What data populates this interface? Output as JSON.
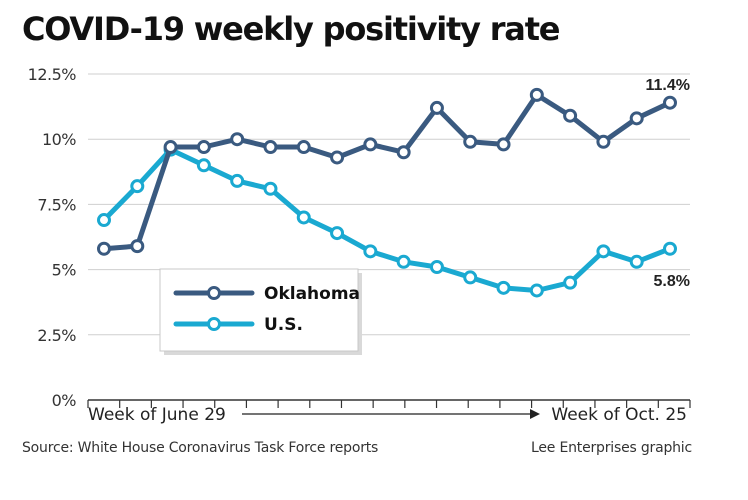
{
  "header": {
    "title": "COVID-19 weekly positivity rate"
  },
  "footer": {
    "source": "Source: White House Coronavirus Task Force reports",
    "credit": "Lee Enterprises graphic"
  },
  "colors": {
    "oklahoma": "#3a5a80",
    "us": "#1aa9d1",
    "grid": "#cfcfcf",
    "axis": "#333333"
  },
  "chart_data": {
    "type": "line",
    "title": "COVID-19 weekly positivity rate",
    "xlabel": "",
    "ylabel": "",
    "ylim": [
      0,
      12.5
    ],
    "y_ticks": [
      0,
      2.5,
      5,
      7.5,
      10,
      12.5
    ],
    "y_tick_labels": [
      "0%",
      "2.5%",
      "5%",
      "7.5%",
      "10%",
      "12.5%"
    ],
    "x": [
      1,
      2,
      3,
      4,
      5,
      6,
      7,
      8,
      9,
      10,
      11,
      12,
      13,
      14,
      15,
      16,
      17,
      18
    ],
    "x_start_label": "Week of June 29",
    "x_arrow": "→",
    "x_end_label": "Week of Oct. 25",
    "grid": true,
    "legend_position": "bottom-left",
    "series": [
      {
        "name": "Oklahoma",
        "color": "#3a5a80",
        "values": [
          5.8,
          5.9,
          9.7,
          9.7,
          10.0,
          9.7,
          9.7,
          9.3,
          9.8,
          9.5,
          11.2,
          9.9,
          9.8,
          11.7,
          10.9,
          9.9,
          10.8,
          11.4
        ],
        "end_label": "11.4%"
      },
      {
        "name": "U.S.",
        "color": "#1aa9d1",
        "values": [
          6.9,
          8.2,
          9.6,
          9.0,
          8.4,
          8.1,
          7.0,
          6.4,
          5.7,
          5.3,
          5.1,
          4.7,
          4.3,
          4.2,
          4.5,
          5.7,
          5.3,
          5.8
        ],
        "end_label": "5.8%"
      }
    ]
  }
}
